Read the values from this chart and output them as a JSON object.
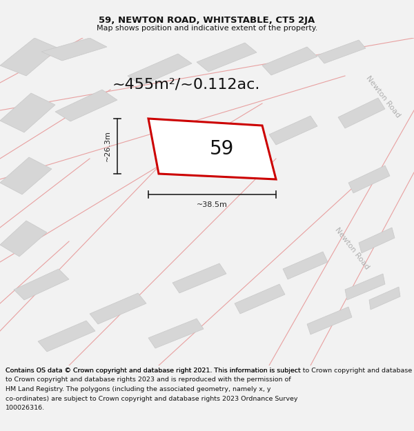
{
  "title": "59, NEWTON ROAD, WHITSTABLE, CT5 2JA",
  "subtitle": "Map shows position and indicative extent of the property.",
  "area_text": "~455m²/~0.112ac.",
  "label_59": "59",
  "dim_width": "~38.5m",
  "dim_height": "~26.3m",
  "road_label_upper": "Newton Road",
  "road_label_lower": "Newton Road",
  "footer_text": "Contains OS data © Crown copyright and database right 2021. This information is subject to Crown copyright and database rights 2023 and is reproduced with the permission of HM Land Registry. The polygons (including the associated geometry, namely x, y co-ordinates) are subject to Crown copyright and database rights 2023 Ordnance Survey 100026316.",
  "bg_color": "#f2f2f2",
  "map_bg": "#ffffff",
  "building_color": "#d6d6d6",
  "building_edge": "#c8c8c8",
  "road_line_color": "#e8a0a0",
  "highlight_color": "#cc0000",
  "highlight_fill": "#ffffff",
  "dim_color": "#222222",
  "title_fontsize": 9.5,
  "subtitle_fontsize": 8,
  "area_fontsize": 16,
  "label_fontsize": 20,
  "dim_fontsize": 8,
  "road_fontsize": 8,
  "footer_fontsize": 6.8
}
